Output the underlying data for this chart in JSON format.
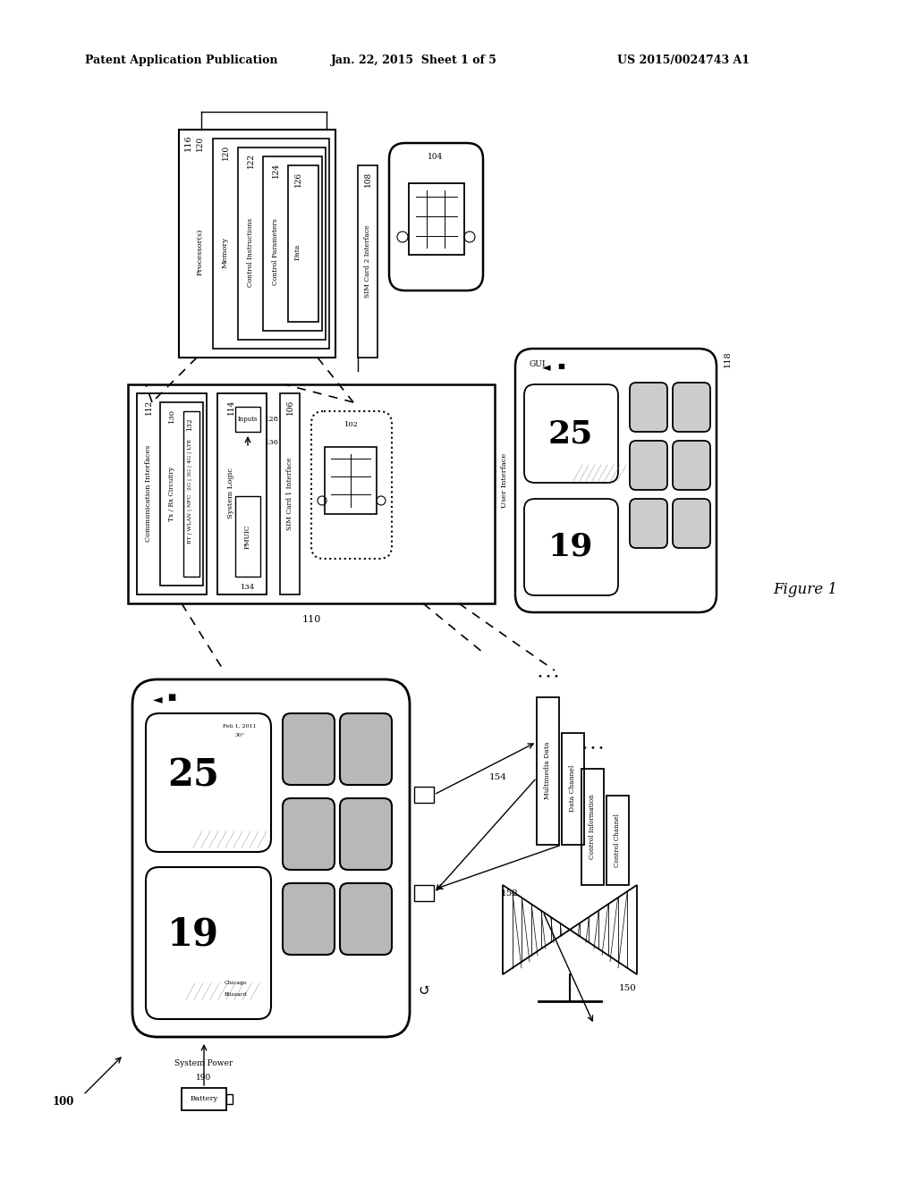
{
  "header_left": "Patent Application Publication",
  "header_mid": "Jan. 22, 2015  Sheet 1 of 5",
  "header_right": "US 2015/0024743 A1",
  "figure_label": "Figure 1",
  "bg_color": "#ffffff",
  "line_color": "#000000",
  "text_color": "#000000"
}
